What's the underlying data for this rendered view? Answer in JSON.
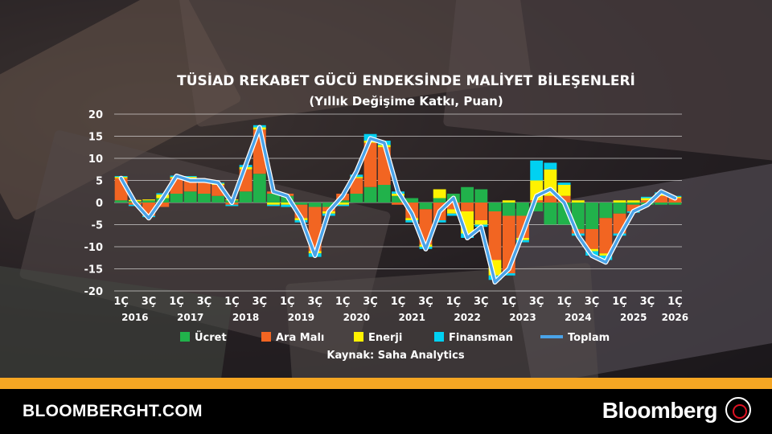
{
  "colors": {
    "ucret": "#21b24b",
    "ara_mali": "#f26522",
    "enerji": "#fff200",
    "finansman": "#00d1f2",
    "toplam": "#4aa3e8",
    "accent": "#f5a623"
  },
  "footer": {
    "site": "BLOOMBERGHT.COM",
    "brand": "Bloomberg",
    "emblem_icon": "bloomberg-ht-emblem-icon"
  },
  "chart_data": {
    "type": "bar",
    "stacked": true,
    "title": "TÜSİAD REKABET GÜCÜ ENDEKSİNDE MALİYET BİLEŞENLERİ",
    "subtitle": "(Yıllık Değişime Katkı, Puan)",
    "source": "Kaynak: Saha Analytics",
    "ylim": [
      -20,
      20
    ],
    "yticks": [
      20,
      15,
      10,
      5,
      0,
      -5,
      -10,
      -15,
      -20
    ],
    "grid": true,
    "legend_position": "bottom",
    "categories": [
      "2016 1Ç",
      "2016 2Ç",
      "2016 3Ç",
      "2016 4Ç",
      "2017 1Ç",
      "2017 2Ç",
      "2017 3Ç",
      "2017 4Ç",
      "2018 1Ç",
      "2018 2Ç",
      "2018 3Ç",
      "2018 4Ç",
      "2019 1Ç",
      "2019 2Ç",
      "2019 3Ç",
      "2019 4Ç",
      "2020 1Ç",
      "2020 2Ç",
      "2020 3Ç",
      "2020 4Ç",
      "2021 1Ç",
      "2021 2Ç",
      "2021 3Ç",
      "2021 4Ç",
      "2022 1Ç",
      "2022 2Ç",
      "2022 3Ç",
      "2022 4Ç",
      "2023 1Ç",
      "2023 2Ç",
      "2023 3Ç",
      "2023 4Ç",
      "2024 1Ç",
      "2024 2Ç",
      "2024 3Ç",
      "2024 4Ç",
      "2025 1Ç",
      "2025 2Ç",
      "2025 3Ç",
      "2025 4Ç",
      "2026 1Ç"
    ],
    "tick_labels": [
      "1Ç",
      "",
      "3Ç",
      "",
      "1Ç",
      "",
      "3Ç",
      "",
      "1Ç",
      "",
      "3Ç",
      "",
      "1Ç",
      "",
      "3Ç",
      "",
      "1Ç",
      "",
      "3Ç",
      "",
      "1Ç",
      "",
      "3Ç",
      "",
      "1Ç",
      "",
      "3Ç",
      "",
      "1Ç",
      "",
      "3Ç",
      "",
      "1Ç",
      "",
      "3Ç",
      "",
      "1Ç",
      "",
      "3Ç",
      "",
      "1Ç"
    ],
    "years": [
      "2016",
      "2017",
      "2018",
      "2019",
      "2020",
      "2021",
      "2022",
      "2023",
      "2024",
      "2025",
      "2026"
    ],
    "series": [
      {
        "name": "Ücret",
        "key": "ucret",
        "values": [
          0.5,
          0.3,
          0.5,
          1.0,
          2.0,
          2.5,
          2.0,
          1.5,
          0.5,
          2.5,
          6.5,
          2.0,
          1.5,
          -0.5,
          -1.0,
          -1.0,
          0.5,
          2.0,
          3.5,
          4.0,
          1.5,
          1.0,
          -1.5,
          1.0,
          2.0,
          3.5,
          3.0,
          -2.0,
          -3.0,
          -3.0,
          -2.0,
          -5.0,
          -5.0,
          -6.0,
          -6.0,
          -3.5,
          -2.5,
          -0.5,
          -0.5,
          -0.5,
          -0.5
        ]
      },
      {
        "name": "Ara Malı",
        "key": "ara_mali",
        "values": [
          5.0,
          -0.5,
          -3.0,
          -1.0,
          3.5,
          3.0,
          2.5,
          2.5,
          -0.5,
          5.0,
          10.0,
          0.5,
          0.5,
          -3.0,
          -10.0,
          -1.0,
          1.5,
          3.5,
          10.0,
          8.5,
          -0.5,
          -3.5,
          -8.0,
          -4.0,
          -1.5,
          -2.0,
          -4.0,
          -11.0,
          -13.0,
          -5.0,
          0.5,
          1.5,
          1.5,
          -1.0,
          -4.5,
          -8.0,
          -4.5,
          -1.5,
          0.5,
          1.5,
          1.0
        ]
      },
      {
        "name": "Enerji",
        "key": "enerji",
        "values": [
          0.3,
          0.3,
          0.2,
          0.8,
          0.3,
          0.3,
          0.3,
          0.3,
          0.2,
          0.5,
          0.5,
          -0.5,
          -0.5,
          -0.5,
          -0.5,
          -0.5,
          -0.5,
          0.3,
          0.5,
          0.5,
          0.5,
          -0.5,
          -0.5,
          2.0,
          -1.0,
          -5.0,
          -1.0,
          -3.5,
          0.5,
          -0.5,
          4.5,
          6.0,
          2.5,
          0.5,
          -0.5,
          -0.5,
          0.5,
          0.5,
          0.5,
          0.5,
          0.3
        ]
      },
      {
        "name": "Finansman",
        "key": "finansman",
        "values": [
          0.2,
          -0.3,
          -0.3,
          0.3,
          0.3,
          0.2,
          0.2,
          0.2,
          -0.3,
          0.5,
          0.5,
          -0.3,
          -0.5,
          -0.5,
          -0.8,
          -0.5,
          -0.3,
          0.5,
          1.5,
          1.0,
          0.5,
          -0.5,
          -0.5,
          -0.5,
          -0.5,
          -1.0,
          -0.5,
          -1.0,
          -0.5,
          -0.5,
          4.5,
          1.5,
          0.5,
          -0.5,
          -1.0,
          -1.0,
          -0.5,
          -0.3,
          0.3,
          0.3,
          0.2
        ]
      },
      {
        "name": "Toplam",
        "key": "toplam",
        "type": "line",
        "values": [
          5.5,
          0.0,
          -3.5,
          1.0,
          6.0,
          5.0,
          5.0,
          4.5,
          0.0,
          8.5,
          17.0,
          2.5,
          1.5,
          -3.5,
          -12.0,
          -2.0,
          1.5,
          7.0,
          14.5,
          13.5,
          2.5,
          -2.5,
          -10.5,
          -2.0,
          1.0,
          -8.0,
          -5.5,
          -18.0,
          -15.0,
          -7.0,
          1.5,
          3.0,
          0.0,
          -7.5,
          -12.0,
          -13.5,
          -7.5,
          -2.0,
          -0.5,
          2.5,
          1.0
        ]
      }
    ]
  }
}
